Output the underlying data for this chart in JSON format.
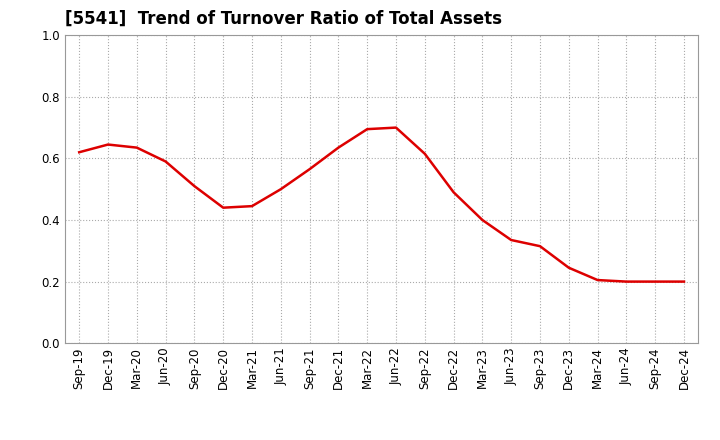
{
  "title": "[5541]  Trend of Turnover Ratio of Total Assets",
  "labels": [
    "Sep-19",
    "Dec-19",
    "Mar-20",
    "Jun-20",
    "Sep-20",
    "Dec-20",
    "Mar-21",
    "Jun-21",
    "Sep-21",
    "Dec-21",
    "Mar-22",
    "Jun-22",
    "Sep-22",
    "Dec-22",
    "Mar-23",
    "Jun-23",
    "Sep-23",
    "Dec-23",
    "Mar-24",
    "Jun-24",
    "Sep-24",
    "Dec-24"
  ],
  "values": [
    0.62,
    0.645,
    0.635,
    0.59,
    0.51,
    0.44,
    0.445,
    0.5,
    0.565,
    0.635,
    0.695,
    0.7,
    0.615,
    0.49,
    0.4,
    0.335,
    0.315,
    0.245,
    0.205,
    0.2,
    0.2,
    0.2
  ],
  "line_color": "#dd0000",
  "line_width": 1.8,
  "ylim": [
    0.0,
    1.0
  ],
  "yticks": [
    0.0,
    0.2,
    0.4,
    0.6,
    0.8,
    1.0
  ],
  "background_color": "#ffffff",
  "grid_color": "#aaaaaa",
  "title_fontsize": 12,
  "tick_fontsize": 8.5
}
